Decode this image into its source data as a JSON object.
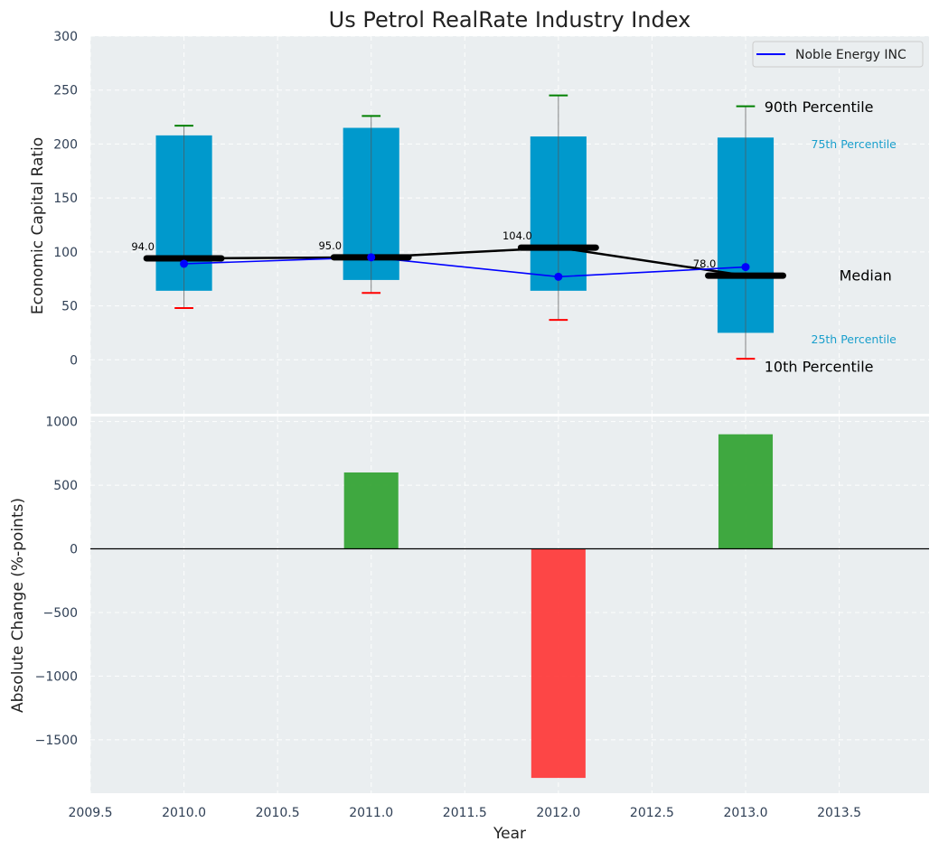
{
  "chart_data": [
    {
      "type": "box",
      "title": "Us Petrol RealRate Industry Index",
      "xlabel": "",
      "ylabel": "Economic Capital Ratio",
      "xlim": [
        2009.5,
        2013.98
      ],
      "ylim": [
        -50,
        300
      ],
      "yticks": [
        0,
        50,
        100,
        150,
        200,
        250,
        300
      ],
      "grid": true,
      "categories": [
        2010,
        2011,
        2012,
        2013
      ],
      "percentiles": {
        "p10": [
          48,
          62,
          37,
          1
        ],
        "p25": [
          64,
          74,
          64,
          25
        ],
        "median": [
          94.0,
          95.0,
          104.0,
          78.0
        ],
        "p75": [
          208,
          215,
          207,
          206
        ],
        "p90": [
          217,
          226,
          245,
          235
        ]
      },
      "median_labels": [
        "94.0",
        "95.0",
        "104.0",
        "78.0"
      ],
      "series": [
        {
          "name": "Noble Energy INC",
          "color": "#0000ff",
          "values": [
            89,
            95,
            77,
            86
          ]
        }
      ],
      "legend": {
        "position": "top-right",
        "entries": [
          "Noble Energy INC"
        ]
      },
      "annotations": {
        "p90": "90th Percentile",
        "p75": "75th Percentile",
        "median": "Median",
        "p25": "25th Percentile",
        "p10": "10th Percentile"
      },
      "colors": {
        "box": "#0099cc",
        "p90_cap": "#008000",
        "p10_cap": "#ff0000",
        "median": "#000000",
        "annotation_small": "#1a9fcc",
        "background": "#eaeef0"
      }
    },
    {
      "type": "bar",
      "xlabel": "Year",
      "ylabel": "Absolute Change (%-points)",
      "xlim": [
        2009.5,
        2013.98
      ],
      "ylim": [
        -1920,
        1040
      ],
      "yticks": [
        -1500,
        -1000,
        -500,
        0,
        500,
        1000
      ],
      "xticks": [
        2009.5,
        2010.0,
        2010.5,
        2011.0,
        2011.5,
        2012.0,
        2012.5,
        2013.0,
        2013.5
      ],
      "xtick_labels": [
        "2009.5",
        "2010.0",
        "2010.5",
        "2011.0",
        "2011.5",
        "2012.0",
        "2012.5",
        "2013.0",
        "2013.5"
      ],
      "grid": true,
      "categories": [
        2011,
        2012,
        2013
      ],
      "values": [
        600,
        -1800,
        900
      ],
      "colors": {
        "positive": "#2ca02c",
        "negative": "#ff3333",
        "zero_line": "#000000"
      }
    }
  ]
}
